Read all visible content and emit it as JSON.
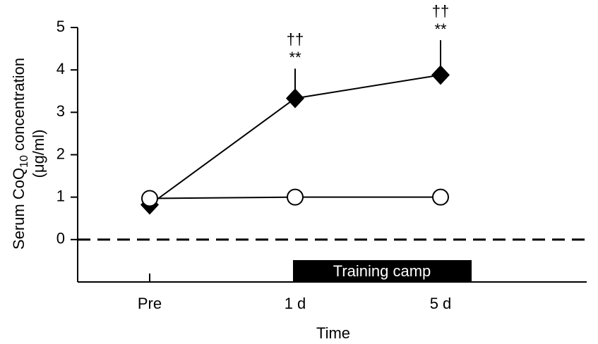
{
  "chart_data": {
    "type": "line",
    "y_label": {
      "main": "Serum CoQ",
      "sub": "10",
      "rest": " concentration",
      "unit": "(μg/ml)"
    },
    "x_label": "Time",
    "categories": [
      "Pre",
      "1 d",
      "5 d"
    ],
    "series": [
      {
        "color": "#000000",
        "marker": "diamond",
        "values": [
          0.82,
          3.33,
          3.88
        ],
        "errors": [
          null,
          0.7,
          0.82
        ]
      },
      {
        "color": "#000000",
        "marker": "circle",
        "values": [
          0.97,
          1.0,
          1.0
        ]
      }
    ],
    "dagger_labels": [
      null,
      "††",
      "††"
    ],
    "star_labels": [
      null,
      "**",
      "**"
    ],
    "reference_line": 0,
    "period_label": "Training camp",
    "ylim": [
      -1,
      5
    ],
    "yticks": [
      0,
      1,
      2,
      3,
      4,
      5
    ]
  }
}
